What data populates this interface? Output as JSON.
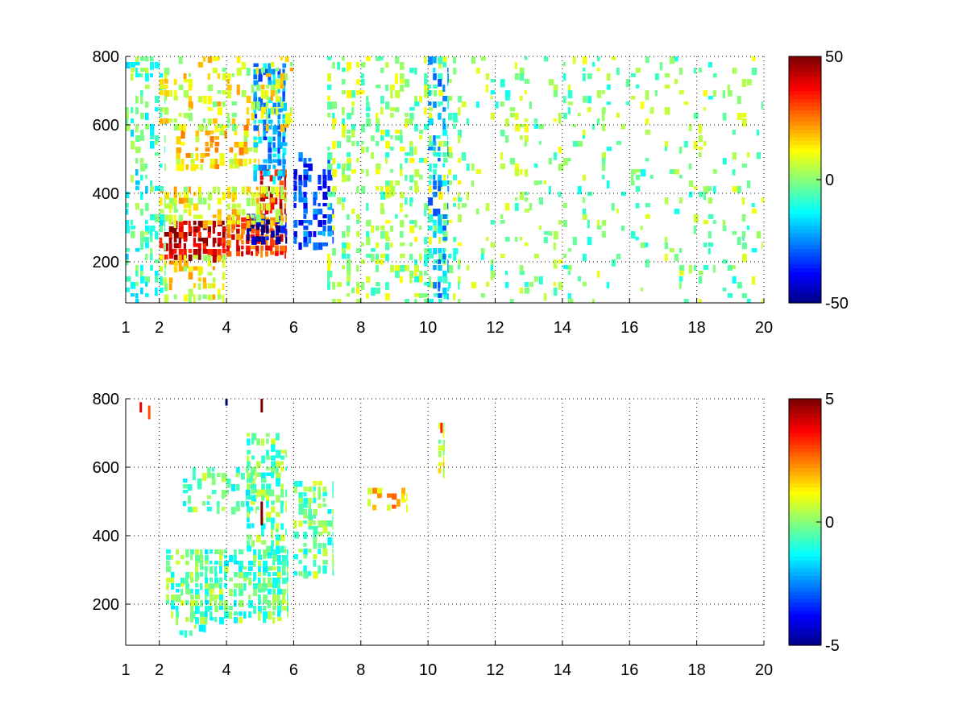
{
  "chart_data": [
    {
      "type": "heatmap",
      "panel": "top",
      "x_ticks": [
        1,
        2,
        4,
        6,
        8,
        10,
        12,
        14,
        16,
        18,
        20
      ],
      "y_ticks": [
        200,
        400,
        600,
        800
      ],
      "xlim": [
        1,
        20
      ],
      "ylim": [
        80,
        800
      ],
      "grid": true,
      "colorbar": {
        "range": [
          -50,
          50
        ],
        "ticks": [
          50,
          0,
          -50
        ],
        "colormap": "jet"
      },
      "regions": [
        {
          "x": [
            2.0,
            4.0
          ],
          "y": [
            220,
            320
          ],
          "value": 42,
          "density": 0.9
        },
        {
          "x": [
            4.0,
            5.8
          ],
          "y": [
            220,
            330
          ],
          "value": 32,
          "density": 0.9
        },
        {
          "x": [
            4.6,
            5.8
          ],
          "y": [
            260,
            340
          ],
          "value": -42,
          "density": 0.8
        },
        {
          "x": [
            5.0,
            5.8
          ],
          "y": [
            340,
            470
          ],
          "value": 36,
          "density": 0.75
        },
        {
          "x": [
            2.0,
            5.8
          ],
          "y": [
            320,
            420
          ],
          "value": 12,
          "density": 0.55
        },
        {
          "x": [
            2.5,
            5.0
          ],
          "y": [
            480,
            600
          ],
          "value": 14,
          "density": 0.55
        },
        {
          "x": [
            4.8,
            5.8
          ],
          "y": [
            450,
            780
          ],
          "value": -22,
          "density": 0.65
        },
        {
          "x": [
            2.0,
            4.0
          ],
          "y": [
            100,
            220
          ],
          "value": 12,
          "density": 0.5
        },
        {
          "x": [
            6.0,
            7.2
          ],
          "y": [
            250,
            520
          ],
          "value": -30,
          "density": 0.6
        },
        {
          "x": [
            1.0,
            2.2
          ],
          "y": [
            80,
            800
          ],
          "value": -6,
          "density": 0.35
        },
        {
          "x": [
            2.0,
            6.0
          ],
          "y": [
            600,
            800
          ],
          "value": 10,
          "density": 0.35
        },
        {
          "x": [
            7.0,
            11.0
          ],
          "y": [
            80,
            800
          ],
          "value": 2,
          "density": 0.32
        },
        {
          "x": [
            10.0,
            10.6
          ],
          "y": [
            80,
            800
          ],
          "value": -18,
          "density": 0.4
        },
        {
          "x": [
            11.0,
            20.0
          ],
          "y": [
            80,
            800
          ],
          "value": 0,
          "density": 0.14
        }
      ]
    },
    {
      "type": "heatmap",
      "panel": "bottom",
      "x_ticks": [
        1,
        2,
        4,
        6,
        8,
        10,
        12,
        14,
        16,
        18,
        20
      ],
      "y_ticks": [
        200,
        400,
        600,
        800
      ],
      "xlim": [
        1,
        20
      ],
      "ylim": [
        80,
        800
      ],
      "grid": true,
      "colorbar": {
        "range": [
          -5,
          5
        ],
        "ticks": [
          5,
          0,
          -5
        ],
        "colormap": "jet"
      },
      "regions": [
        {
          "x": [
            2.2,
            5.8
          ],
          "y": [
            160,
            360
          ],
          "value": -0.3,
          "density": 0.75
        },
        {
          "x": [
            4.6,
            5.8
          ],
          "y": [
            360,
            700
          ],
          "value": -0.2,
          "density": 0.55
        },
        {
          "x": [
            2.7,
            4.9
          ],
          "y": [
            480,
            600
          ],
          "value": -0.3,
          "density": 0.45
        },
        {
          "x": [
            6.0,
            7.2
          ],
          "y": [
            280,
            560
          ],
          "value": -0.2,
          "density": 0.5
        },
        {
          "x": [
            2.6,
            3.4
          ],
          "y": [
            110,
            140
          ],
          "value": -0.3,
          "density": 0.4
        },
        {
          "x": [
            8.2,
            9.4
          ],
          "y": [
            480,
            540
          ],
          "value": 1.8,
          "density": 0.35
        },
        {
          "x": [
            10.3,
            10.5
          ],
          "y": [
            580,
            730
          ],
          "value": 0.8,
          "density": 0.6
        }
      ],
      "spikes": [
        {
          "x": 5.05,
          "y": [
            430,
            500
          ],
          "value": 5
        },
        {
          "x": 5.05,
          "y": [
            760,
            800
          ],
          "value": 5
        },
        {
          "x": 4.0,
          "y": [
            780,
            800
          ],
          "value": -5
        },
        {
          "x": 1.45,
          "y": [
            760,
            790
          ],
          "value": 4
        },
        {
          "x": 1.7,
          "y": [
            740,
            780
          ],
          "value": 3
        },
        {
          "x": 10.4,
          "y": [
            700,
            730
          ],
          "value": 3.5
        }
      ]
    }
  ]
}
